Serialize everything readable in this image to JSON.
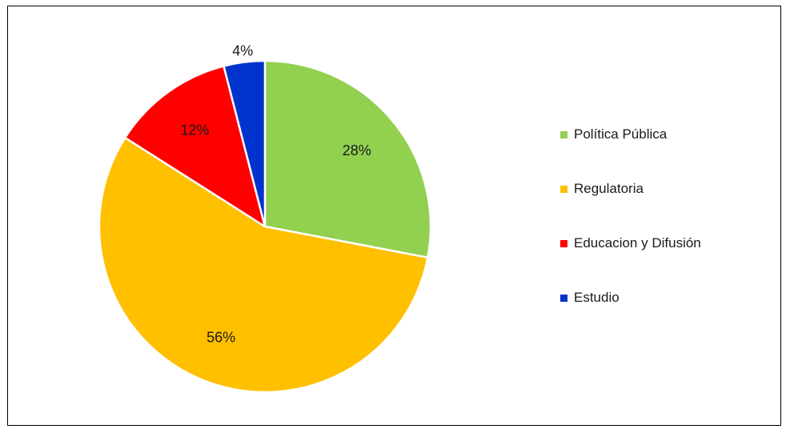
{
  "chart_data": {
    "type": "pie",
    "title": "",
    "slices": [
      {
        "name": "Política Pública",
        "value": 28,
        "label": "28%",
        "color": "#92d050"
      },
      {
        "name": "Regulatoria",
        "value": 56,
        "label": "56%",
        "color": "#ffc000"
      },
      {
        "name": "Educacion y Difusión",
        "value": 12,
        "label": "12%",
        "color": "#ff0000"
      },
      {
        "name": "Estudio",
        "value": 4,
        "label": "4%",
        "color": "#0033cc"
      }
    ],
    "start_angle_deg": 0,
    "direction": "clockwise",
    "legend_position": "right"
  }
}
